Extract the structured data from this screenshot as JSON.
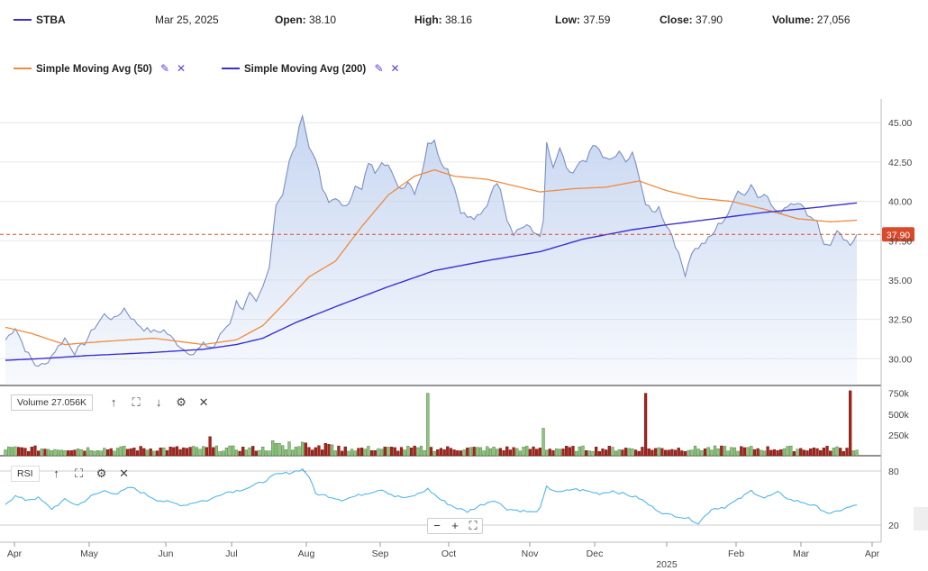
{
  "header": {
    "symbol": "STBA",
    "symbol_color": "#3b2fd0",
    "date": "Mar 25, 2025",
    "open_label": "Open:",
    "open_value": "38.10",
    "high_label": "High:",
    "high_value": "38.16",
    "low_label": "Low:",
    "low_value": "37.59",
    "close_label": "Close:",
    "close_value": "37.90",
    "volume_label": "Volume:",
    "volume_value": "27,056"
  },
  "indicators": [
    {
      "name": "Simple Moving Avg (50)",
      "color": "#f08a3c",
      "edit_icon": "pencil-icon",
      "remove_icon": "close-icon"
    },
    {
      "name": "Simple Moving Avg (200)",
      "color": "#3b2fd0",
      "edit_icon": "pencil-icon",
      "remove_icon": "close-icon"
    }
  ],
  "volume_panel": {
    "label": "Volume 27.056K",
    "icons": [
      "arrow-up-icon",
      "expand-icon",
      "arrow-down-icon",
      "gear-icon",
      "close-icon"
    ]
  },
  "rsi_panel": {
    "label": "RSI",
    "icons": [
      "arrow-up-icon",
      "expand-icon",
      "gear-icon",
      "close-icon"
    ]
  },
  "zoom_controls": {
    "minus": "−",
    "plus": "+",
    "fit_icon": "fit-icon"
  },
  "chart_data": {
    "type": "area",
    "price_axis": {
      "ticks": [
        "45.00",
        "42.50",
        "40.00",
        "37.50",
        "35.00",
        "32.50",
        "30.00"
      ],
      "ylim": [
        28.3,
        46.5
      ]
    },
    "last_price_label": "37.90",
    "last_price": 37.9,
    "volume_axis": {
      "ticks": [
        "750k",
        "500k",
        "250k"
      ],
      "ylim": [
        0,
        800000
      ]
    },
    "rsi_axis": {
      "ticks": [
        "80",
        "20"
      ],
      "ylim": [
        15,
        85
      ],
      "overbought": 80,
      "oversold": 20
    },
    "x_axis": {
      "month_labels": [
        "Apr",
        "May",
        "Jun",
        "Jul",
        "Aug",
        "Sep",
        "Oct",
        "Nov",
        "Dec",
        "Feb",
        "Mar",
        "Apr"
      ],
      "year_label": "2025"
    },
    "colors": {
      "price_line": "#7a8fc4",
      "area_top": "#c4d4f0",
      "sma50": "#f08a3c",
      "sma200": "#3b2fd0",
      "vol_up": "#8cc47a",
      "vol_down": "#a8231a",
      "rsi": "#52b5e8",
      "last_price_bg": "#d94a2a"
    },
    "price_anchors": [
      [
        0,
        31.2
      ],
      [
        3,
        32.0
      ],
      [
        6,
        30.6
      ],
      [
        9,
        29.6
      ],
      [
        12,
        29.6
      ],
      [
        15,
        30.5
      ],
      [
        18,
        31.3
      ],
      [
        21,
        30.4
      ],
      [
        24,
        31.0
      ],
      [
        27,
        32.0
      ],
      [
        30,
        32.8
      ],
      [
        33,
        32.5
      ],
      [
        36,
        33.2
      ],
      [
        39,
        32.4
      ],
      [
        42,
        31.9
      ],
      [
        45,
        31.7
      ],
      [
        48,
        31.8
      ],
      [
        51,
        31.2
      ],
      [
        54,
        30.6
      ],
      [
        57,
        30.3
      ],
      [
        60,
        30.9
      ],
      [
        63,
        30.7
      ],
      [
        66,
        31.8
      ],
      [
        68,
        32.3
      ],
      [
        70,
        33.6
      ],
      [
        72,
        33.2
      ],
      [
        74,
        34.1
      ],
      [
        76,
        33.5
      ],
      [
        78,
        34.5
      ],
      [
        80,
        35.8
      ],
      [
        81,
        38.0
      ],
      [
        82,
        39.8
      ],
      [
        84,
        40.5
      ],
      [
        86,
        42.5
      ],
      [
        88,
        43.6
      ],
      [
        90,
        45.6
      ],
      [
        92,
        43.4
      ],
      [
        94,
        42.8
      ],
      [
        96,
        40.8
      ],
      [
        98,
        39.9
      ],
      [
        100,
        40.3
      ],
      [
        102,
        39.6
      ],
      [
        104,
        40.0
      ],
      [
        106,
        40.9
      ],
      [
        108,
        40.7
      ],
      [
        110,
        42.5
      ],
      [
        112,
        41.9
      ],
      [
        114,
        42.6
      ],
      [
        116,
        42.3
      ],
      [
        118,
        41.3
      ],
      [
        120,
        40.8
      ],
      [
        122,
        41.3
      ],
      [
        124,
        40.6
      ],
      [
        126,
        41.7
      ],
      [
        128,
        43.6
      ],
      [
        130,
        44.0
      ],
      [
        132,
        42.4
      ],
      [
        134,
        42.1
      ],
      [
        136,
        40.9
      ],
      [
        138,
        39.4
      ],
      [
        140,
        39.0
      ],
      [
        142,
        38.9
      ],
      [
        144,
        39.1
      ],
      [
        146,
        39.8
      ],
      [
        148,
        41.1
      ],
      [
        150,
        40.9
      ],
      [
        152,
        38.9
      ],
      [
        154,
        38.0
      ],
      [
        156,
        38.3
      ],
      [
        158,
        38.5
      ],
      [
        160,
        38.0
      ],
      [
        162,
        37.9
      ],
      [
        163,
        38.6
      ],
      [
        164,
        43.7
      ],
      [
        166,
        42.0
      ],
      [
        168,
        43.4
      ],
      [
        170,
        42.0
      ],
      [
        172,
        41.8
      ],
      [
        174,
        42.4
      ],
      [
        176,
        42.5
      ],
      [
        178,
        43.5
      ],
      [
        180,
        43.3
      ],
      [
        182,
        42.6
      ],
      [
        184,
        42.7
      ],
      [
        186,
        43.1
      ],
      [
        188,
        42.5
      ],
      [
        190,
        43.0
      ],
      [
        192,
        41.7
      ],
      [
        194,
        39.8
      ],
      [
        196,
        39.3
      ],
      [
        198,
        39.6
      ],
      [
        200,
        38.6
      ],
      [
        202,
        37.9
      ],
      [
        204,
        36.6
      ],
      [
        206,
        35.4
      ],
      [
        208,
        36.8
      ],
      [
        210,
        37.1
      ],
      [
        212,
        37.4
      ],
      [
        214,
        37.8
      ],
      [
        216,
        38.5
      ],
      [
        218,
        38.9
      ],
      [
        220,
        39.6
      ],
      [
        222,
        40.8
      ],
      [
        224,
        40.4
      ],
      [
        226,
        41.1
      ],
      [
        228,
        40.3
      ],
      [
        230,
        40.6
      ],
      [
        232,
        39.8
      ],
      [
        234,
        39.2
      ],
      [
        236,
        39.6
      ],
      [
        238,
        39.9
      ],
      [
        240,
        40.0
      ],
      [
        242,
        39.5
      ],
      [
        244,
        39.0
      ],
      [
        246,
        38.8
      ],
      [
        248,
        37.2
      ],
      [
        250,
        37.3
      ],
      [
        252,
        38.0
      ],
      [
        254,
        37.6
      ],
      [
        256,
        37.1
      ],
      [
        258,
        37.9
      ]
    ],
    "sma50_anchors": [
      [
        0,
        32.0
      ],
      [
        8,
        31.6
      ],
      [
        18,
        30.9
      ],
      [
        30,
        31.1
      ],
      [
        45,
        31.3
      ],
      [
        60,
        30.9
      ],
      [
        70,
        31.2
      ],
      [
        78,
        32.1
      ],
      [
        84,
        33.4
      ],
      [
        92,
        35.2
      ],
      [
        100,
        36.2
      ],
      [
        108,
        38.4
      ],
      [
        116,
        40.4
      ],
      [
        124,
        41.6
      ],
      [
        130,
        42.0
      ],
      [
        136,
        41.6
      ],
      [
        146,
        41.4
      ],
      [
        154,
        41.0
      ],
      [
        162,
        40.6
      ],
      [
        172,
        40.8
      ],
      [
        182,
        40.9
      ],
      [
        192,
        41.3
      ],
      [
        200,
        40.7
      ],
      [
        210,
        40.2
      ],
      [
        220,
        40.0
      ],
      [
        230,
        39.5
      ],
      [
        240,
        38.9
      ],
      [
        250,
        38.7
      ],
      [
        258,
        38.8
      ]
    ],
    "sma200_anchors": [
      [
        0,
        29.9
      ],
      [
        10,
        30.0
      ],
      [
        25,
        30.2
      ],
      [
        45,
        30.4
      ],
      [
        60,
        30.6
      ],
      [
        70,
        30.9
      ],
      [
        78,
        31.3
      ],
      [
        88,
        32.3
      ],
      [
        100,
        33.3
      ],
      [
        115,
        34.5
      ],
      [
        130,
        35.6
      ],
      [
        145,
        36.2
      ],
      [
        162,
        36.8
      ],
      [
        175,
        37.6
      ],
      [
        190,
        38.2
      ],
      [
        200,
        38.5
      ],
      [
        215,
        38.9
      ],
      [
        230,
        39.3
      ],
      [
        245,
        39.6
      ],
      [
        258,
        39.9
      ]
    ],
    "volume_spikes": [
      [
        62,
        230000
      ],
      [
        128,
        750000
      ],
      [
        163,
        330000
      ],
      [
        194,
        750000
      ],
      [
        256,
        780000
      ]
    ],
    "rsi_anchors": [
      [
        0,
        44
      ],
      [
        3,
        52
      ],
      [
        6,
        48
      ],
      [
        10,
        50
      ],
      [
        14,
        38
      ],
      [
        18,
        48
      ],
      [
        22,
        42
      ],
      [
        26,
        52
      ],
      [
        30,
        58
      ],
      [
        34,
        55
      ],
      [
        38,
        62
      ],
      [
        42,
        55
      ],
      [
        46,
        48
      ],
      [
        50,
        45
      ],
      [
        54,
        42
      ],
      [
        58,
        46
      ],
      [
        62,
        48
      ],
      [
        66,
        56
      ],
      [
        70,
        58
      ],
      [
        74,
        62
      ],
      [
        78,
        68
      ],
      [
        82,
        76
      ],
      [
        86,
        78
      ],
      [
        90,
        82
      ],
      [
        92,
        74
      ],
      [
        94,
        55
      ],
      [
        98,
        52
      ],
      [
        102,
        48
      ],
      [
        106,
        52
      ],
      [
        110,
        56
      ],
      [
        114,
        60
      ],
      [
        118,
        52
      ],
      [
        122,
        50
      ],
      [
        126,
        56
      ],
      [
        128,
        60
      ],
      [
        132,
        48
      ],
      [
        136,
        40
      ],
      [
        140,
        35
      ],
      [
        144,
        42
      ],
      [
        148,
        48
      ],
      [
        152,
        38
      ],
      [
        156,
        36
      ],
      [
        160,
        34
      ],
      [
        162,
        38
      ],
      [
        164,
        62
      ],
      [
        168,
        56
      ],
      [
        172,
        60
      ],
      [
        176,
        58
      ],
      [
        180,
        55
      ],
      [
        184,
        58
      ],
      [
        188,
        54
      ],
      [
        192,
        50
      ],
      [
        196,
        40
      ],
      [
        200,
        32
      ],
      [
        204,
        30
      ],
      [
        208,
        26
      ],
      [
        210,
        22
      ],
      [
        214,
        38
      ],
      [
        218,
        40
      ],
      [
        222,
        48
      ],
      [
        226,
        58
      ],
      [
        230,
        50
      ],
      [
        234,
        56
      ],
      [
        238,
        48
      ],
      [
        242,
        45
      ],
      [
        246,
        40
      ],
      [
        250,
        32
      ],
      [
        254,
        38
      ],
      [
        258,
        42
      ]
    ]
  }
}
